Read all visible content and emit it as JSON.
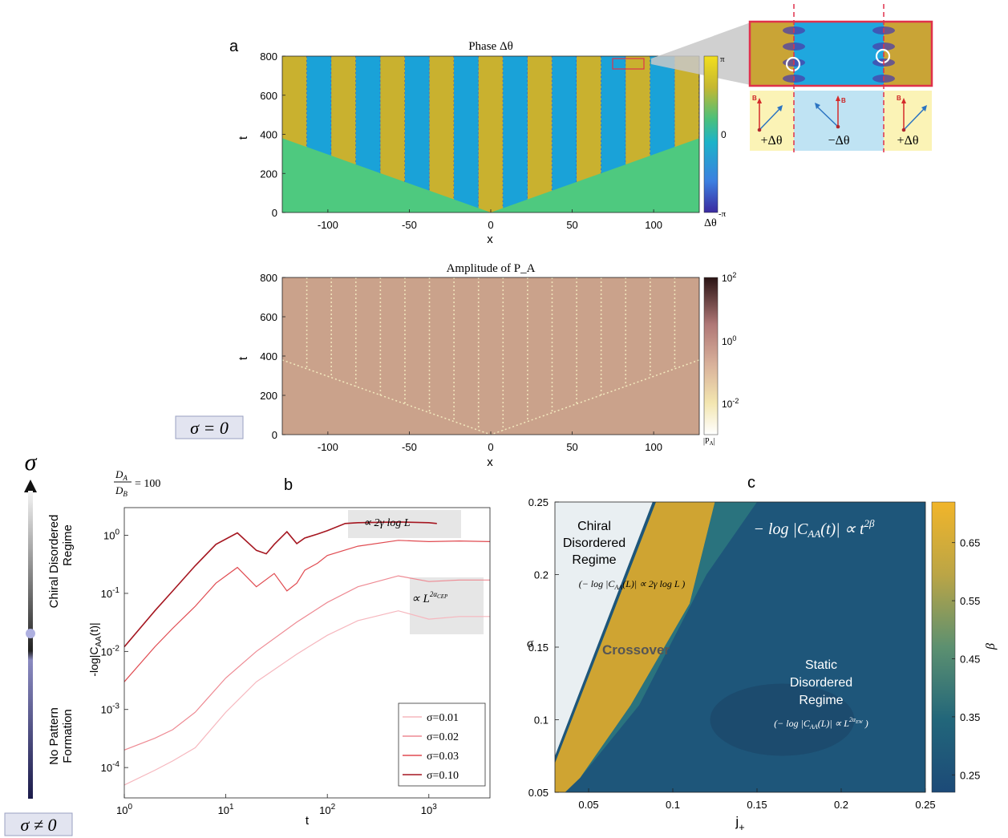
{
  "panel_labels": {
    "a": "a",
    "b": "b",
    "c": "c"
  },
  "sigma_badges": {
    "zero": "σ = 0",
    "nonzero": "σ ≠ 0"
  },
  "side_axis": {
    "symbol": "σ",
    "upper_label_line1": "Chiral Disordered",
    "upper_label_line2": "Regime",
    "lower_label_line1": "No Pattern",
    "lower_label_line2": "Formation"
  },
  "ratio_label": {
    "num": "D",
    "num_sub": "A",
    "den": "D",
    "den_sub": "B",
    "rhs": "= 100"
  },
  "inset": {
    "labels": [
      "+Δθ",
      "−Δθ",
      "+Δθ"
    ],
    "vector_label": "B",
    "colors": {
      "plus": "#fbf3b6",
      "minus": "#bfe3f3",
      "frame": "#e0314b"
    }
  },
  "chart_data": [
    {
      "id": "phase",
      "type": "heatmap",
      "title": "Phase Δθ",
      "xlabel": "x",
      "ylabel": "t",
      "xlim": [
        -128,
        128
      ],
      "ylim": [
        0,
        800
      ],
      "xticks": [
        "-100",
        "-50",
        "0",
        "50",
        "100"
      ],
      "yticks": [
        "0",
        "200",
        "400",
        "600",
        "800"
      ],
      "colorbar": {
        "ticks": [
          "π",
          "0",
          "-π"
        ],
        "label": "Δθ"
      },
      "front_time_at_edge": 380,
      "stripe_count": 17,
      "colors": {
        "low": "#3f3fc9",
        "mid": "#1aa2d8",
        "high": "#c9b12f",
        "background": "#4ec97f",
        "zero": "#2ab9a8"
      }
    },
    {
      "id": "amplitude",
      "type": "heatmap",
      "title": "Amplitude of P_A",
      "xlabel": "x",
      "ylabel": "t",
      "xlim": [
        -128,
        128
      ],
      "ylim": [
        0,
        800
      ],
      "xticks": [
        "-100",
        "-50",
        "0",
        "50",
        "100"
      ],
      "yticks": [
        "0",
        "200",
        "400",
        "600",
        "800"
      ],
      "colorbar": {
        "ticks": [
          "10^2",
          "10^0",
          "10^-2"
        ],
        "label": "|P_A|",
        "scale": "log"
      },
      "colors": {
        "background": "#caa28b",
        "lines": "#f4eabe"
      }
    },
    {
      "id": "correlation",
      "type": "line",
      "xlabel": "t",
      "ylabel": "-log|C_AA(t)|",
      "xscale": "log",
      "yscale": "log",
      "xlim": [
        1,
        4000
      ],
      "ylim": [
        3e-05,
        3
      ],
      "xticks": [
        "10^0",
        "10^1",
        "10^2",
        "10^3"
      ],
      "yticks": [
        "10^-4",
        "10^-3",
        "10^-2",
        "10^-1",
        "10^0"
      ],
      "annotations": [
        "∝ 2γ log L",
        "∝ L^2α_CEP"
      ],
      "legend_position": "bottom-right",
      "series": [
        {
          "name": "σ=0.01",
          "color": "#f6b7be",
          "x": [
            1,
            2,
            3,
            5,
            10,
            20,
            50,
            100,
            200,
            500,
            1000,
            2000,
            4000
          ],
          "y": [
            5e-05,
            9e-05,
            0.00013,
            0.00022,
            0.0009,
            0.003,
            0.009,
            0.019,
            0.034,
            0.05,
            0.036,
            0.04,
            0.04
          ]
        },
        {
          "name": "σ=0.02",
          "color": "#ee8a93",
          "x": [
            1,
            2,
            3,
            5,
            10,
            20,
            50,
            100,
            200,
            500,
            1000,
            2000,
            4000
          ],
          "y": [
            0.0002,
            0.00032,
            0.00045,
            0.0009,
            0.0035,
            0.01,
            0.032,
            0.07,
            0.13,
            0.2,
            0.16,
            0.17,
            0.17
          ]
        },
        {
          "name": "σ=0.03",
          "color": "#e04a50",
          "x": [
            1,
            2,
            3,
            5,
            8,
            13,
            20,
            30,
            40,
            50,
            60,
            80,
            100,
            200,
            500,
            1000,
            2000,
            4000
          ],
          "y": [
            0.003,
            0.012,
            0.025,
            0.06,
            0.15,
            0.28,
            0.13,
            0.22,
            0.11,
            0.15,
            0.25,
            0.33,
            0.45,
            0.65,
            0.82,
            0.78,
            0.8,
            0.78
          ]
        },
        {
          "name": "σ=0.10",
          "color": "#a51620",
          "x": [
            1,
            2,
            3,
            5,
            8,
            13,
            20,
            25,
            30,
            40,
            50,
            60,
            80,
            100,
            150,
            200,
            500,
            1000,
            1200
          ],
          "y": [
            0.012,
            0.05,
            0.11,
            0.3,
            0.7,
            1.1,
            0.55,
            0.48,
            0.7,
            1.15,
            0.72,
            0.9,
            1.05,
            1.2,
            1.6,
            1.65,
            1.7,
            1.65,
            1.6
          ]
        }
      ]
    },
    {
      "id": "beta_map",
      "type": "heatmap",
      "xlabel": "j₊",
      "ylabel": "σ",
      "xlim": [
        0.03,
        0.25
      ],
      "ylim": [
        0.05,
        0.25
      ],
      "xticks": [
        "0.05",
        "0.1",
        "0.15",
        "0.2",
        "0.25"
      ],
      "yticks": [
        "0.05",
        "0.1",
        "0.15",
        "0.2",
        "0.25"
      ],
      "colorbar": {
        "label": "β",
        "ticks": [
          "0.25",
          "0.35",
          "0.45",
          "0.55",
          "0.65"
        ],
        "range": [
          0.22,
          0.72
        ]
      },
      "colors": {
        "low": "#1c4e73",
        "mid": "#2f8080",
        "high": "#e2ad2a",
        "chiral": "#e9eff2"
      },
      "labels": {
        "chiral_line1": "Chiral",
        "chiral_line2": "Disordered",
        "chiral_line3": "Regime",
        "chiral_formula": "(− log |C_AA(L)| ∝ 2γ log L )",
        "crossover": "Crossover",
        "static_line1": "Static",
        "static_line2": "Disordered",
        "static_line3": "Regime",
        "static_formula": "(− log |C_AA(L)| ∝ L^2α_EW )",
        "title_formula": "− log |C_AA(t)| ∝ t^2β"
      }
    }
  ]
}
